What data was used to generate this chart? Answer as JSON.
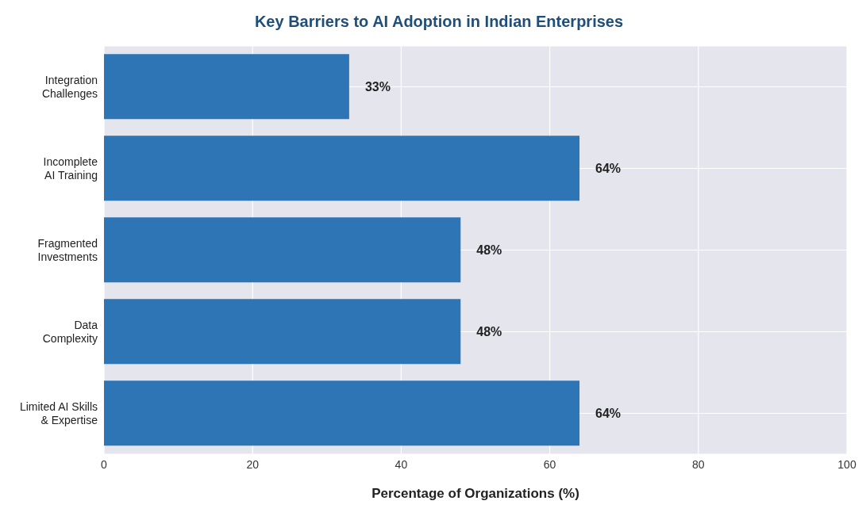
{
  "chart_data": {
    "type": "bar",
    "orientation": "horizontal",
    "title": "Key Barriers to AI Adoption in Indian Enterprises",
    "xlabel": "Percentage of Organizations (%)",
    "categories": [
      "Integration\nChallenges",
      "Incomplete\nAI Training",
      "Fragmented\nInvestments",
      "Data\nComplexity",
      "Limited AI Skills\n& Expertise"
    ],
    "values": [
      33,
      64,
      48,
      48,
      64
    ],
    "value_labels": [
      "33%",
      "64%",
      "48%",
      "48%",
      "64%"
    ],
    "color": "#2e75b6",
    "xlim": [
      0,
      100
    ],
    "xticks": [
      0,
      20,
      40,
      60,
      80,
      100
    ],
    "grid": true
  }
}
